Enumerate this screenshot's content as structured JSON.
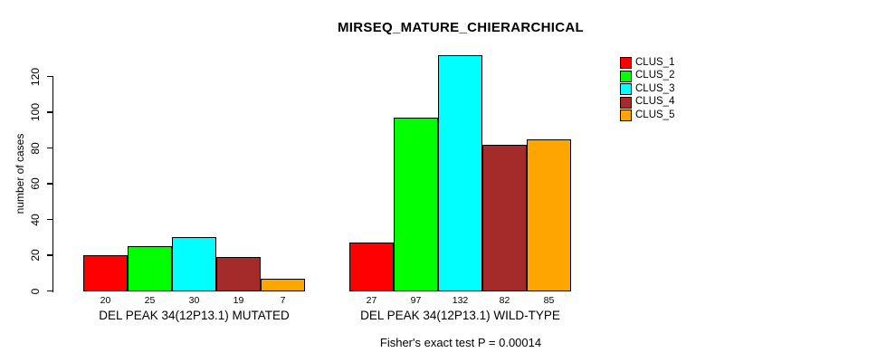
{
  "chart_data": {
    "type": "bar",
    "title": "MIRSEQ_MATURE_CHIERARCHICAL",
    "ylabel": "number of cases",
    "xlabel": "",
    "yticks": [
      0,
      20,
      40,
      60,
      80,
      100,
      120
    ],
    "ylim": [
      0,
      135
    ],
    "grid": false,
    "legend_position": "right",
    "series": [
      {
        "name": "CLUS_1",
        "color": "#FF0000"
      },
      {
        "name": "CLUS_2",
        "color": "#00FF00"
      },
      {
        "name": "CLUS_3",
        "color": "#00FFFF"
      },
      {
        "name": "CLUS_4",
        "color": "#A52A2A"
      },
      {
        "name": "CLUS_5",
        "color": "#FFA500"
      }
    ],
    "groups": [
      {
        "label": "DEL PEAK 34(12P13.1) MUTATED",
        "values": [
          20,
          25,
          30,
          19,
          7
        ]
      },
      {
        "label": "DEL PEAK 34(12P13.1) WILD-TYPE",
        "values": [
          27,
          97,
          132,
          82,
          85
        ]
      }
    ],
    "footnote": "Fisher's exact test P = 0.00014",
    "axis_color": "#000000",
    "bar_border_color": "#000000"
  }
}
